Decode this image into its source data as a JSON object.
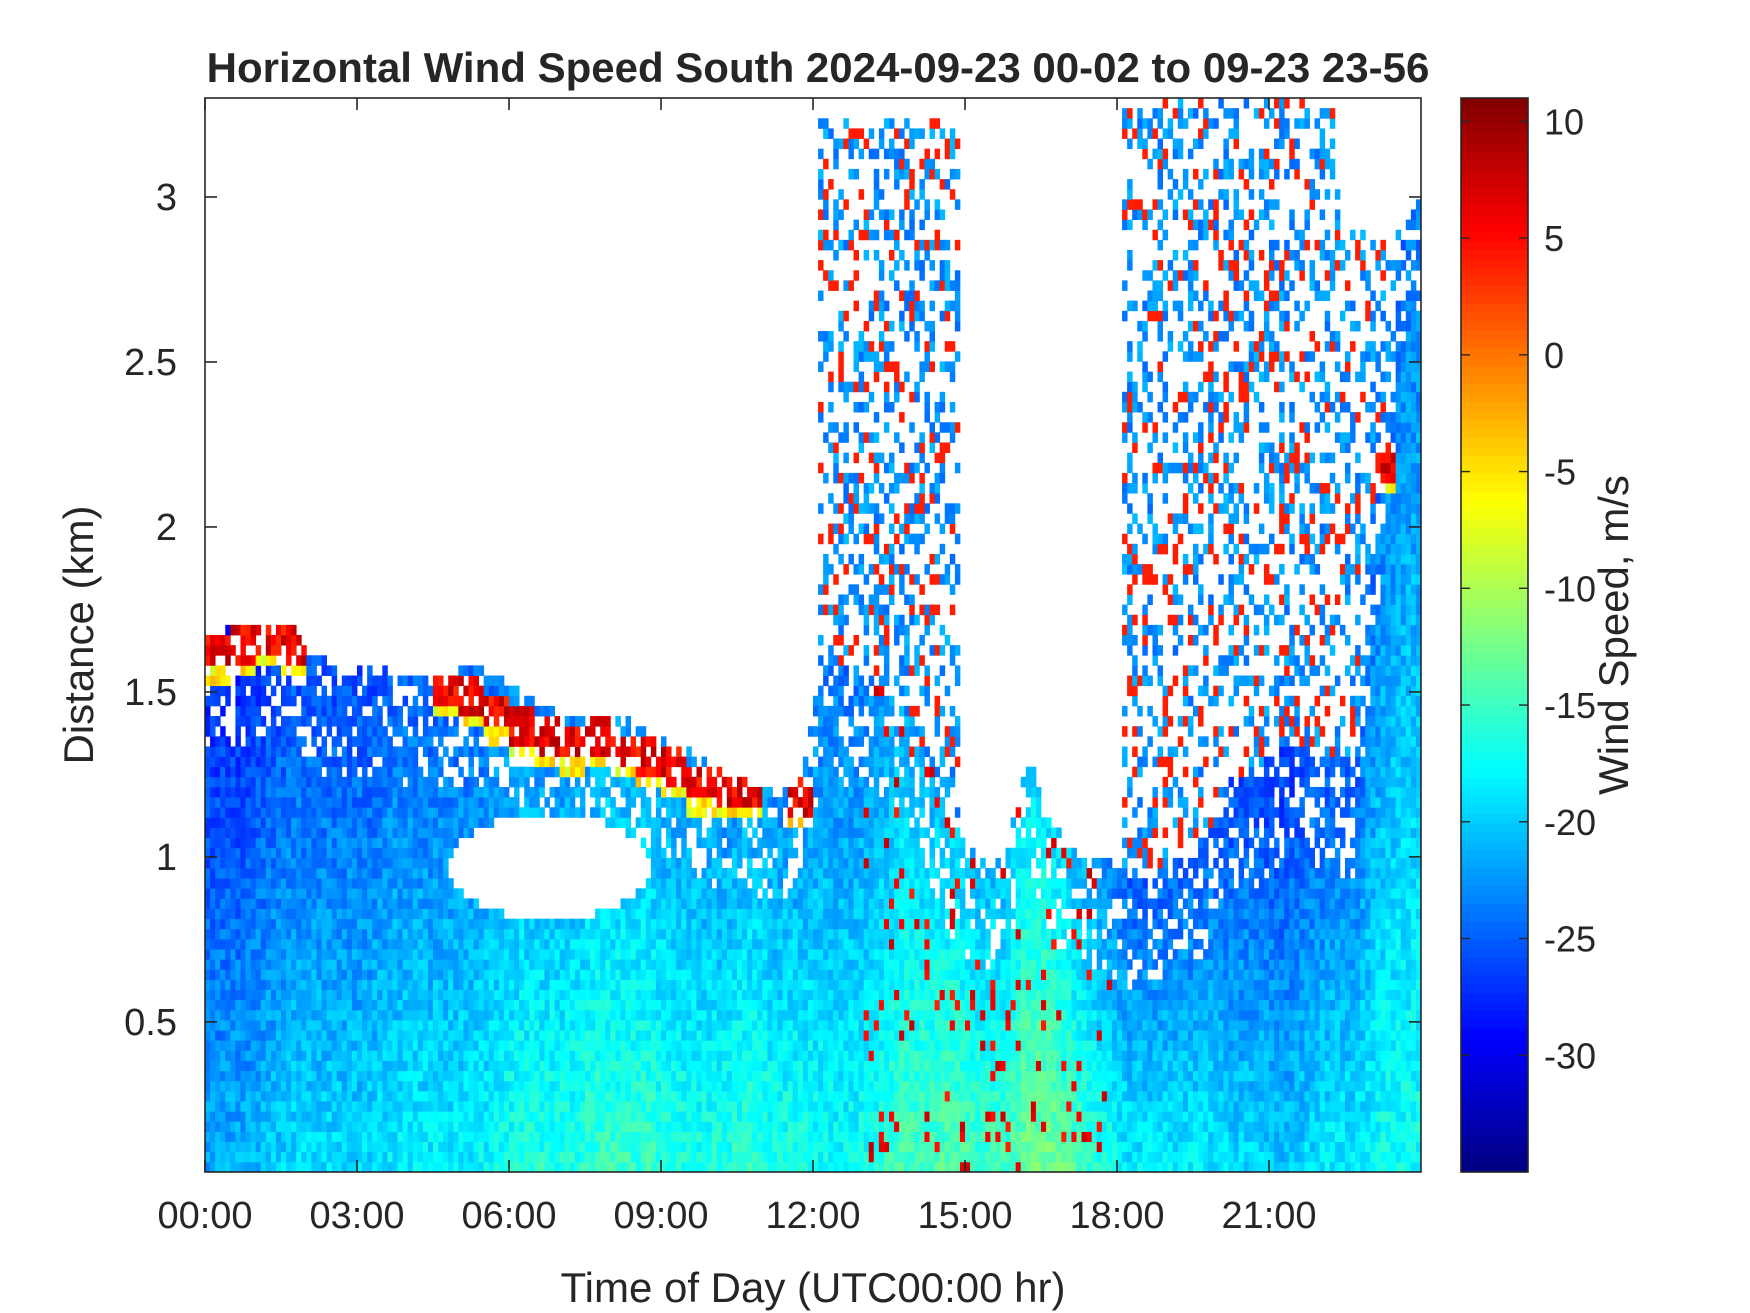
{
  "chart_data": {
    "type": "heatmap",
    "title": "Horizontal Wind Speed South 2024-09-23 00-02 to 09-23 23-56",
    "xlabel": "Time of Day (UTC00:00 hr)",
    "ylabel": "Distance (km)",
    "colorbar_label": "Wind Speed, m/s",
    "colormap": "jet",
    "grid": false,
    "x_unit": "hours UTC",
    "y_unit": "km",
    "z_unit": "m/s",
    "xlim": [
      0,
      24
    ],
    "ylim": [
      0.045,
      3.3
    ],
    "zlim": [
      -35,
      11
    ],
    "x_ticks": [
      0,
      3,
      6,
      9,
      12,
      15,
      18,
      21
    ],
    "x_tick_labels": [
      "00:00",
      "03:00",
      "06:00",
      "09:00",
      "12:00",
      "15:00",
      "18:00",
      "21:00"
    ],
    "y_ticks": [
      0.5,
      1,
      1.5,
      2,
      2.5,
      3
    ],
    "y_tick_labels": [
      "0.5",
      "1",
      "1.5",
      "2",
      "2.5",
      "3"
    ],
    "colorbar_ticks": [
      10,
      5,
      0,
      -5,
      -10,
      -15,
      -20,
      -25,
      -30
    ],
    "colorbar_tick_labels": [
      "10",
      "5",
      "0",
      "-5",
      "-10",
      "-15",
      "-20",
      "-25",
      "-30"
    ],
    "time_hours": [
      0,
      0.5,
      1,
      1.5,
      2,
      2.5,
      3,
      3.5,
      4,
      4.5,
      5,
      5.5,
      6,
      6.5,
      7,
      7.5,
      8,
      8.5,
      9,
      9.5,
      10,
      10.5,
      11,
      11.5,
      12,
      12.5,
      13,
      13.5,
      14,
      14.5,
      15,
      15.5,
      16,
      16.5,
      17,
      17.5,
      18,
      18.5,
      19,
      19.5,
      20,
      20.5,
      21,
      21.5,
      22,
      22.5,
      23,
      23.5
    ],
    "data_top_km": [
      1.68,
      1.7,
      1.72,
      1.7,
      1.6,
      1.58,
      1.58,
      1.56,
      1.55,
      1.55,
      1.58,
      1.55,
      1.5,
      1.45,
      1.42,
      1.42,
      1.42,
      1.38,
      1.35,
      1.3,
      1.25,
      1.25,
      1.2,
      1.25,
      1.65,
      1.55,
      1.55,
      1.45,
      1.3,
      1.1,
      1.0,
      1.0,
      1.3,
      1.1,
      1.0,
      1.0,
      0.95,
      0.95,
      1.0,
      1.05,
      1.25,
      1.25,
      1.35,
      1.35,
      1.3,
      1.3,
      2.3,
      3.0
    ],
    "jet_layer_top_km": [
      1.68,
      1.7,
      1.72,
      1.7,
      null,
      null,
      null,
      null,
      null,
      1.58,
      1.55,
      1.5,
      1.46,
      1.42,
      1.4,
      1.42,
      1.38,
      1.36,
      1.33,
      1.28,
      1.26,
      1.26,
      null,
      1.24,
      null,
      null,
      null,
      null,
      null,
      null,
      null,
      null,
      null,
      null,
      null,
      null,
      null,
      null,
      null,
      null,
      null,
      null,
      null,
      null,
      null,
      null,
      2.25,
      null
    ],
    "surface_speed_m_s": [
      -21,
      -21,
      -20,
      -19,
      -19,
      -19,
      -19,
      -18,
      -18,
      -18,
      -18,
      -17,
      -16,
      -16,
      -16,
      -15,
      -15,
      -15,
      -16,
      -16,
      -16,
      -15,
      -16,
      -16,
      -17,
      -17,
      -16,
      -14,
      -14,
      -13,
      -14,
      -14,
      -12,
      -12,
      -14,
      -16,
      -18,
      -18,
      -18,
      -18,
      -19,
      -19,
      -20,
      -19,
      -18,
      -18,
      -17,
      -17
    ],
    "gap_center_hours": 6.8,
    "gap_center_km": 0.97,
    "upper_feature_hours": [
      13.5,
      19.5,
      21.0,
      22.5
    ],
    "upper_feature_top_km": [
      3.25,
      3.3,
      3.3,
      2.9
    ]
  }
}
